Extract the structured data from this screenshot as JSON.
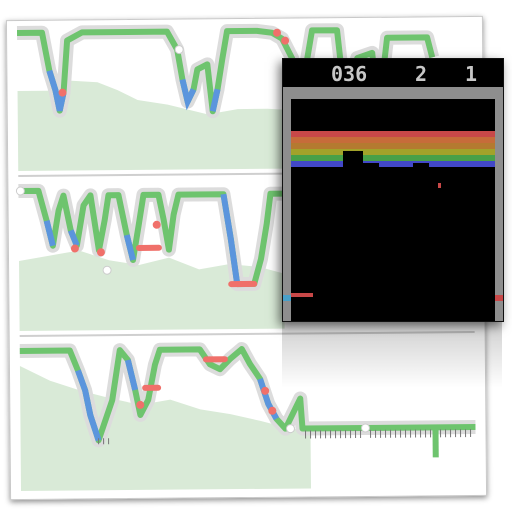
{
  "scoreboard": {
    "score": "036",
    "lives": "2",
    "player": "1",
    "text_color": "#c7c7c7"
  },
  "brick_colors": [
    "#c84848",
    "#c66c3a",
    "#b47a30",
    "#a2a22a",
    "#48a048",
    "#4248c8"
  ],
  "series_colors": {
    "green": "#6ec46e",
    "blue": "#5b95dd",
    "red": "#f0706a",
    "white": "#ffffff",
    "ticks": "#777777",
    "area": "#d9ead7",
    "band": "#dcdcdc"
  }
}
